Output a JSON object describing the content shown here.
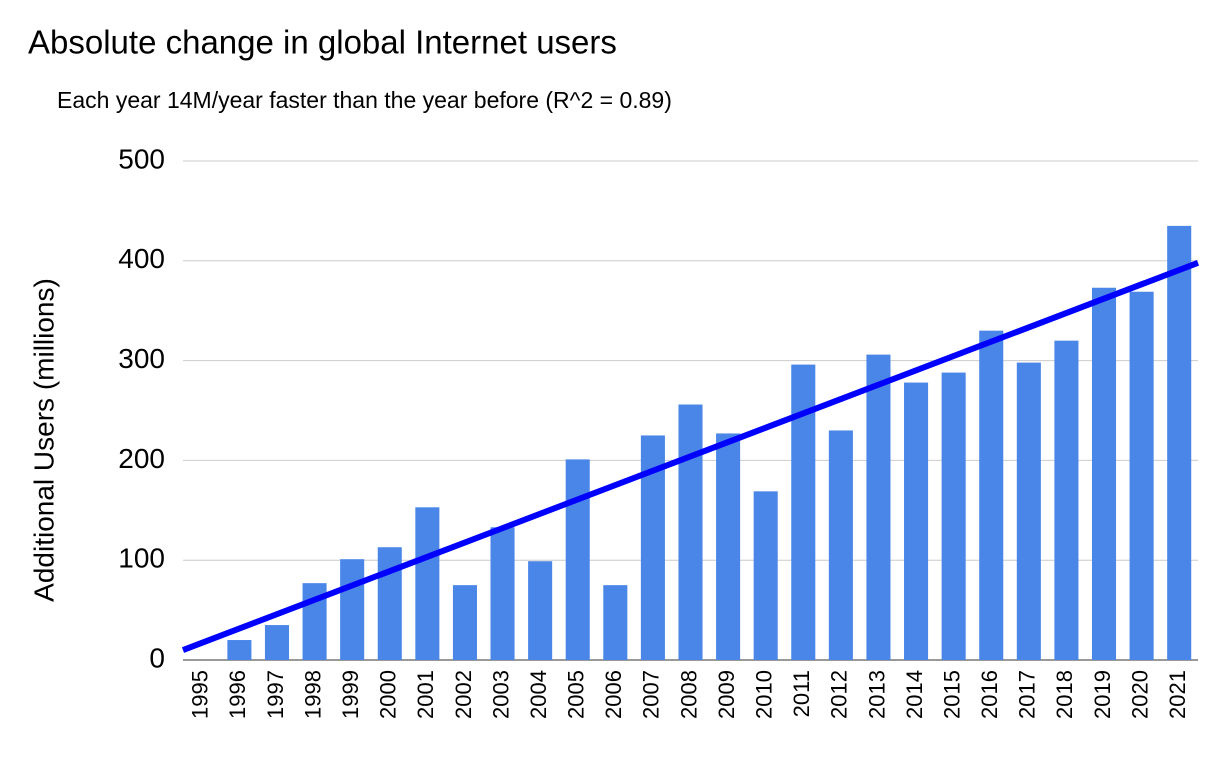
{
  "chart_data": {
    "type": "bar",
    "title": "Absolute change in global Internet users",
    "subtitle": "Each year 14M/year faster than the year before  (R^2 = 0.89)",
    "y_label": "Additional Users (millions)",
    "categories": [
      "1995",
      "1996",
      "1997",
      "1998",
      "1999",
      "2000",
      "2001",
      "2002",
      "2003",
      "2004",
      "2005",
      "2006",
      "2007",
      "2008",
      "2009",
      "2010",
      "2011",
      "2012",
      "2013",
      "2014",
      "2015",
      "2016",
      "2017",
      "2018",
      "2019",
      "2020",
      "2021"
    ],
    "values": [
      0,
      20,
      35,
      77,
      101,
      113,
      153,
      75,
      133,
      99,
      201,
      75,
      225,
      256,
      227,
      169,
      296,
      230,
      306,
      278,
      288,
      330,
      298,
      320,
      373,
      369,
      435
    ],
    "color": "#4a86e8",
    "trendline": {
      "color": "#0000ff",
      "start": 10,
      "end": 398
    },
    "ylim": [
      0,
      500
    ],
    "yticks": [
      0,
      100,
      200,
      300,
      400,
      500
    ],
    "grid": true
  }
}
